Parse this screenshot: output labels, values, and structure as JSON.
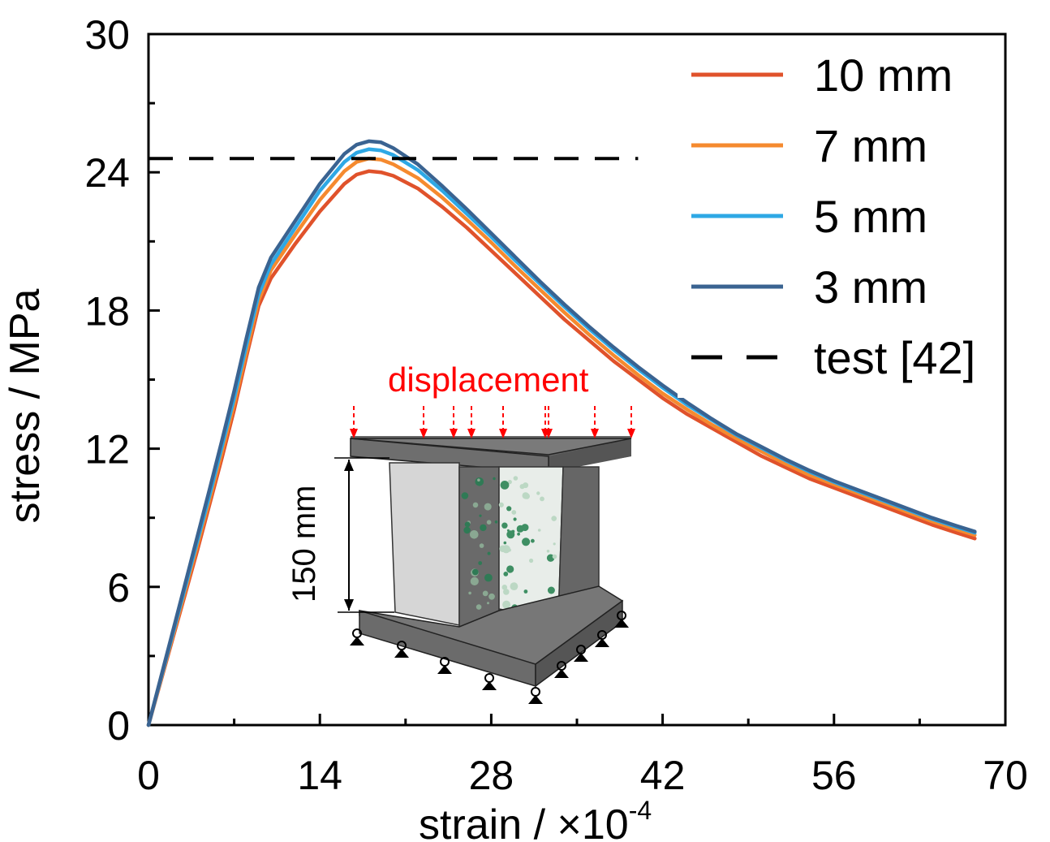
{
  "chart_data": {
    "type": "line",
    "xlabel": "strain / ×10",
    "xlabel_exponent": "-4",
    "ylabel": "stress / MPa",
    "xlim": [
      0,
      70
    ],
    "ylim": [
      0,
      30
    ],
    "xticks": [
      0,
      14,
      28,
      42,
      56,
      70
    ],
    "yticks": [
      0,
      6,
      12,
      18,
      24,
      30
    ],
    "grid": false,
    "legend_position": "top-right",
    "series": [
      {
        "name": "10 mm",
        "color": "#e0522b",
        "style": "solid",
        "points": [
          [
            0,
            0
          ],
          [
            1,
            1.9
          ],
          [
            2,
            3.8
          ],
          [
            3,
            5.7
          ],
          [
            4,
            7.6
          ],
          [
            5,
            9.6
          ],
          [
            6,
            11.6
          ],
          [
            7,
            13.7
          ],
          [
            8,
            16.0
          ],
          [
            9,
            18.2
          ],
          [
            10,
            19.4
          ],
          [
            12,
            20.9
          ],
          [
            14,
            22.3
          ],
          [
            16,
            23.5
          ],
          [
            17,
            23.9
          ],
          [
            18,
            24.05
          ],
          [
            19,
            24.0
          ],
          [
            20,
            23.85
          ],
          [
            22,
            23.3
          ],
          [
            24,
            22.5
          ],
          [
            26,
            21.6
          ],
          [
            28,
            20.6
          ],
          [
            30,
            19.6
          ],
          [
            32,
            18.6
          ],
          [
            34,
            17.6
          ],
          [
            36,
            16.7
          ],
          [
            38,
            15.8
          ],
          [
            40,
            15.0
          ],
          [
            42,
            14.2
          ],
          [
            44,
            13.5
          ],
          [
            46,
            12.9
          ],
          [
            48,
            12.3
          ],
          [
            50,
            11.7
          ],
          [
            52,
            11.2
          ],
          [
            54,
            10.7
          ],
          [
            56,
            10.3
          ],
          [
            58,
            9.9
          ],
          [
            60,
            9.5
          ],
          [
            62,
            9.1
          ],
          [
            64,
            8.7
          ],
          [
            66,
            8.35
          ],
          [
            67.5,
            8.1
          ]
        ]
      },
      {
        "name": "7 mm",
        "color": "#f58a2f",
        "style": "solid",
        "points": [
          [
            0,
            0
          ],
          [
            1,
            1.95
          ],
          [
            2,
            3.9
          ],
          [
            3,
            5.85
          ],
          [
            4,
            7.8
          ],
          [
            5,
            9.8
          ],
          [
            6,
            11.85
          ],
          [
            7,
            13.95
          ],
          [
            8,
            16.2
          ],
          [
            9,
            18.45
          ],
          [
            10,
            19.75
          ],
          [
            12,
            21.3
          ],
          [
            14,
            22.8
          ],
          [
            16,
            24.05
          ],
          [
            17,
            24.45
          ],
          [
            18,
            24.6
          ],
          [
            19,
            24.55
          ],
          [
            20,
            24.35
          ],
          [
            22,
            23.75
          ],
          [
            24,
            22.9
          ],
          [
            26,
            21.95
          ],
          [
            28,
            20.95
          ],
          [
            30,
            19.9
          ],
          [
            32,
            18.9
          ],
          [
            34,
            17.9
          ],
          [
            36,
            16.95
          ],
          [
            38,
            16.05
          ],
          [
            40,
            15.2
          ],
          [
            42,
            14.4
          ],
          [
            44,
            13.7
          ],
          [
            46,
            13.05
          ],
          [
            48,
            12.45
          ],
          [
            50,
            11.9
          ],
          [
            52,
            11.35
          ],
          [
            54,
            10.85
          ],
          [
            56,
            10.45
          ],
          [
            58,
            10.05
          ],
          [
            60,
            9.65
          ],
          [
            62,
            9.25
          ],
          [
            64,
            8.85
          ],
          [
            66,
            8.5
          ],
          [
            67.5,
            8.25
          ]
        ]
      },
      {
        "name": "5 mm",
        "color": "#2ea8e5",
        "style": "solid",
        "points": [
          [
            0,
            0
          ],
          [
            1,
            2.0
          ],
          [
            2,
            4.0
          ],
          [
            3,
            6.0
          ],
          [
            4,
            8.0
          ],
          [
            5,
            10.0
          ],
          [
            6,
            12.1
          ],
          [
            7,
            14.2
          ],
          [
            8,
            16.5
          ],
          [
            9,
            18.7
          ],
          [
            10,
            20.0
          ],
          [
            12,
            21.6
          ],
          [
            14,
            23.2
          ],
          [
            16,
            24.45
          ],
          [
            17,
            24.85
          ],
          [
            18,
            25.0
          ],
          [
            19,
            24.95
          ],
          [
            20,
            24.75
          ],
          [
            22,
            24.1
          ],
          [
            24,
            23.2
          ],
          [
            26,
            22.2
          ],
          [
            28,
            21.2
          ],
          [
            30,
            20.15
          ],
          [
            32,
            19.15
          ],
          [
            34,
            18.15
          ],
          [
            36,
            17.2
          ],
          [
            38,
            16.3
          ],
          [
            40,
            15.45
          ],
          [
            42,
            14.65
          ],
          [
            44,
            13.9
          ],
          [
            46,
            13.25
          ],
          [
            48,
            12.6
          ],
          [
            50,
            12.05
          ],
          [
            52,
            11.5
          ],
          [
            54,
            11.0
          ],
          [
            56,
            10.55
          ],
          [
            58,
            10.15
          ],
          [
            60,
            9.75
          ],
          [
            62,
            9.35
          ],
          [
            64,
            8.95
          ],
          [
            66,
            8.6
          ],
          [
            67.5,
            8.35
          ]
        ]
      },
      {
        "name": "3 mm",
        "color": "#3a6391",
        "style": "solid",
        "points": [
          [
            0,
            0
          ],
          [
            1,
            2.05
          ],
          [
            2,
            4.1
          ],
          [
            3,
            6.15
          ],
          [
            4,
            8.2
          ],
          [
            5,
            10.25
          ],
          [
            6,
            12.35
          ],
          [
            7,
            14.5
          ],
          [
            8,
            16.8
          ],
          [
            9,
            19.0
          ],
          [
            10,
            20.3
          ],
          [
            12,
            21.9
          ],
          [
            14,
            23.5
          ],
          [
            16,
            24.8
          ],
          [
            17,
            25.2
          ],
          [
            18,
            25.35
          ],
          [
            19,
            25.3
          ],
          [
            20,
            25.05
          ],
          [
            22,
            24.35
          ],
          [
            24,
            23.4
          ],
          [
            26,
            22.4
          ],
          [
            28,
            21.35
          ],
          [
            30,
            20.3
          ],
          [
            32,
            19.25
          ],
          [
            34,
            18.25
          ],
          [
            36,
            17.3
          ],
          [
            38,
            16.4
          ],
          [
            40,
            15.55
          ],
          [
            42,
            14.75
          ],
          [
            44,
            14.0
          ],
          [
            46,
            13.3
          ],
          [
            48,
            12.65
          ],
          [
            50,
            12.1
          ],
          [
            52,
            11.55
          ],
          [
            54,
            11.05
          ],
          [
            56,
            10.6
          ],
          [
            58,
            10.2
          ],
          [
            60,
            9.8
          ],
          [
            62,
            9.4
          ],
          [
            64,
            9.0
          ],
          [
            66,
            8.65
          ],
          [
            67.5,
            8.4
          ]
        ]
      },
      {
        "name": "test [42]",
        "color": "#000000",
        "style": "dashed",
        "points": [
          [
            0,
            24.6
          ],
          [
            40,
            24.6
          ]
        ]
      }
    ]
  },
  "inset": {
    "load_label": "displacement",
    "dimension_label": "150 mm"
  }
}
